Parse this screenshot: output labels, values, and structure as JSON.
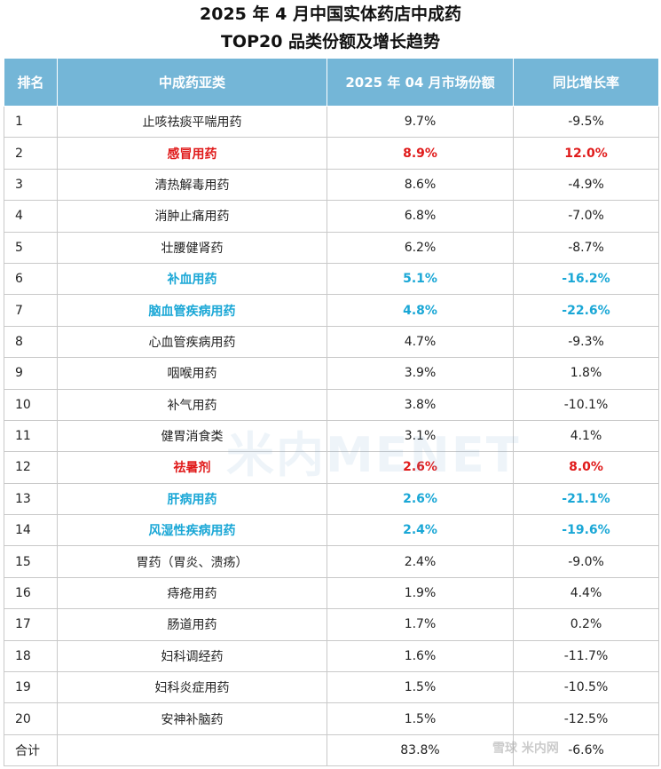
{
  "title": {
    "line1": "2025 年 4 月中国实体药店中成药",
    "line2": "TOP20 品类份额及增长趋势"
  },
  "table": {
    "headers": [
      "排名",
      "中成药亚类",
      "2025 年 04 月市场份额",
      "同比增长率"
    ],
    "rows": [
      {
        "rank": "1",
        "category": "止咳祛痰平喘用药",
        "share": "9.7%",
        "growth": "-9.5%",
        "highlight": ""
      },
      {
        "rank": "2",
        "category": "感冒用药",
        "share": "8.9%",
        "growth": "12.0%",
        "highlight": "red"
      },
      {
        "rank": "3",
        "category": "清热解毒用药",
        "share": "8.6%",
        "growth": "-4.9%",
        "highlight": ""
      },
      {
        "rank": "4",
        "category": "消肿止痛用药",
        "share": "6.8%",
        "growth": "-7.0%",
        "highlight": ""
      },
      {
        "rank": "5",
        "category": "壮腰健肾药",
        "share": "6.2%",
        "growth": "-8.7%",
        "highlight": ""
      },
      {
        "rank": "6",
        "category": "补血用药",
        "share": "5.1%",
        "growth": "-16.2%",
        "highlight": "blue"
      },
      {
        "rank": "7",
        "category": "脑血管疾病用药",
        "share": "4.8%",
        "growth": "-22.6%",
        "highlight": "blue"
      },
      {
        "rank": "8",
        "category": "心血管疾病用药",
        "share": "4.7%",
        "growth": "-9.3%",
        "highlight": ""
      },
      {
        "rank": "9",
        "category": "咽喉用药",
        "share": "3.9%",
        "growth": "1.8%",
        "highlight": ""
      },
      {
        "rank": "10",
        "category": "补气用药",
        "share": "3.8%",
        "growth": "-10.1%",
        "highlight": ""
      },
      {
        "rank": "11",
        "category": "健胃消食类",
        "share": "3.1%",
        "growth": "4.1%",
        "highlight": ""
      },
      {
        "rank": "12",
        "category": "祛暑剂",
        "share": "2.6%",
        "growth": "8.0%",
        "highlight": "red"
      },
      {
        "rank": "13",
        "category": "肝病用药",
        "share": "2.6%",
        "growth": "-21.1%",
        "highlight": "blue"
      },
      {
        "rank": "14",
        "category": "风湿性疾病用药",
        "share": "2.4%",
        "growth": "-19.6%",
        "highlight": "blue"
      },
      {
        "rank": "15",
        "category": "胃药（胃炎、溃疡）",
        "share": "2.4%",
        "growth": "-9.0%",
        "highlight": ""
      },
      {
        "rank": "16",
        "category": "痔疮用药",
        "share": "1.9%",
        "growth": "4.4%",
        "highlight": ""
      },
      {
        "rank": "17",
        "category": "肠道用药",
        "share": "1.7%",
        "growth": "0.2%",
        "highlight": ""
      },
      {
        "rank": "18",
        "category": "妇科调经药",
        "share": "1.6%",
        "growth": "-11.7%",
        "highlight": ""
      },
      {
        "rank": "19",
        "category": "妇科炎症用药",
        "share": "1.5%",
        "growth": "-10.5%",
        "highlight": ""
      },
      {
        "rank": "20",
        "category": "安神补脑药",
        "share": "1.5%",
        "growth": "-12.5%",
        "highlight": ""
      },
      {
        "rank": "合计",
        "category": "",
        "share": "83.8%",
        "growth": "-6.6%",
        "highlight": ""
      }
    ]
  },
  "watermarks": {
    "center": "米内MENET",
    "corner": "雪球  米内网"
  },
  "colors": {
    "header_bg": "#74b6d7",
    "highlight_red": "#e01b1b",
    "highlight_blue": "#1aa7d6"
  }
}
